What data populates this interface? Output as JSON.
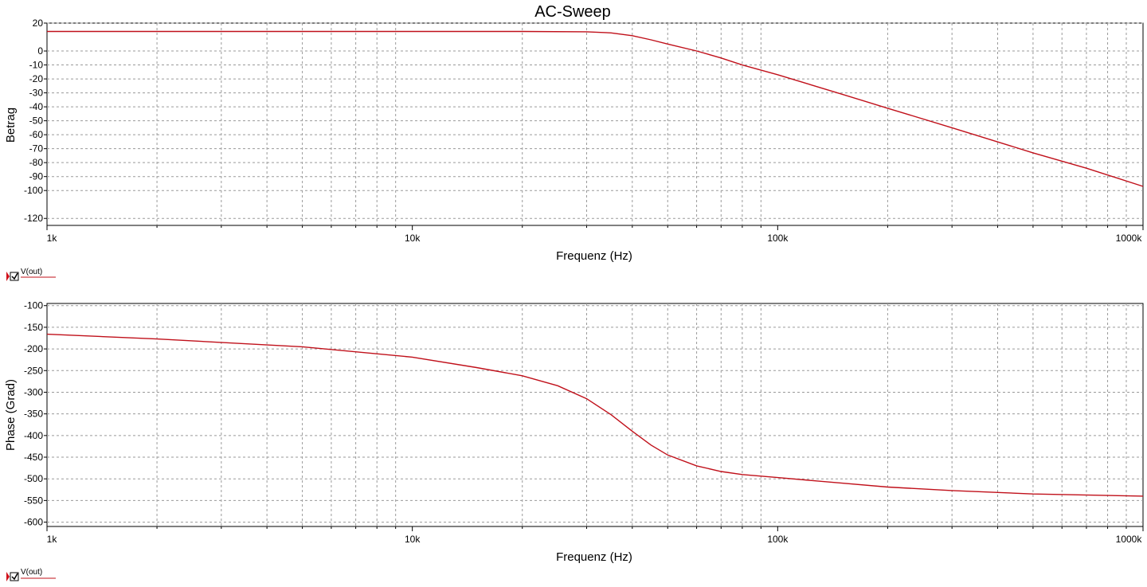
{
  "chart_data": [
    {
      "type": "line",
      "title": "AC-Sweep",
      "xlabel": "Frequenz (Hz)",
      "ylabel": "Betrag",
      "x_scale": "log",
      "xlim": [
        1000,
        1000000
      ],
      "ylim": [
        -125,
        20
      ],
      "x_ticks": [
        1000,
        10000,
        100000,
        1000000
      ],
      "x_tick_labels": [
        "1k",
        "10k",
        "100k",
        "1000k"
      ],
      "y_ticks": [
        20,
        0,
        -10,
        -20,
        -30,
        -40,
        -50,
        -60,
        -70,
        -80,
        -90,
        -100,
        -120
      ],
      "y_tick_labels": [
        "20",
        "0",
        "-10",
        "-20",
        "-30",
        "-40",
        "-50",
        "-60",
        "-70",
        "-80",
        "-90",
        "-100",
        "-120"
      ],
      "grid": true,
      "series": [
        {
          "name": "V(out)",
          "color": "#c0101a",
          "x": [
            1000,
            2000,
            5000,
            10000,
            20000,
            30000,
            35000,
            40000,
            45000,
            50000,
            60000,
            70000,
            80000,
            100000,
            150000,
            200000,
            300000,
            500000,
            700000,
            1000000
          ],
          "y": [
            14,
            14,
            14,
            14,
            14,
            13.8,
            13,
            11,
            8,
            5,
            0,
            -5,
            -10,
            -17,
            -31,
            -41,
            -55,
            -73,
            -84,
            -97
          ]
        }
      ],
      "legend": {
        "label": "V(out)",
        "checked": true,
        "placement": "bottom-left"
      }
    },
    {
      "type": "line",
      "xlabel": "Frequenz (Hz)",
      "ylabel": "Phase (Grad)",
      "x_scale": "log",
      "xlim": [
        1000,
        1000000
      ],
      "ylim": [
        -610,
        -95
      ],
      "x_ticks": [
        1000,
        10000,
        100000,
        1000000
      ],
      "x_tick_labels": [
        "1k",
        "10k",
        "100k",
        "1000k"
      ],
      "y_ticks": [
        -100,
        -150,
        -200,
        -250,
        -300,
        -350,
        -400,
        -450,
        -500,
        -550,
        -600
      ],
      "y_tick_labels": [
        "-100",
        "-150",
        "-200",
        "-250",
        "-300",
        "-350",
        "-400",
        "-450",
        "-500",
        "-550",
        "-600"
      ],
      "grid": true,
      "series": [
        {
          "name": "V(out)",
          "color": "#c0101a",
          "x": [
            1000,
            2000,
            5000,
            10000,
            15000,
            20000,
            25000,
            30000,
            35000,
            40000,
            45000,
            50000,
            60000,
            70000,
            80000,
            100000,
            150000,
            200000,
            300000,
            500000,
            1000000
          ],
          "y": [
            -166,
            -177,
            -195,
            -219,
            -243,
            -262,
            -285,
            -315,
            -352,
            -390,
            -422,
            -445,
            -470,
            -483,
            -490,
            -497,
            -510,
            -519,
            -527,
            -535,
            -540
          ]
        }
      ],
      "legend": {
        "label": "V(out)",
        "checked": true,
        "placement": "bottom-left"
      }
    }
  ]
}
